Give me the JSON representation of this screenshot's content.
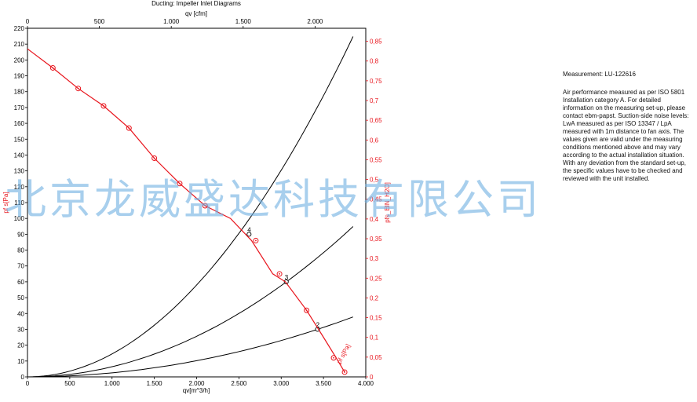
{
  "header": {
    "small_title": "Ducting: Impeller Inlet Diagrams"
  },
  "chart_data": {
    "type": "line",
    "top_axis": {
      "label": "qv [cfm]",
      "ticks": [
        0,
        500,
        1000,
        1500,
        2000
      ],
      "tick_labels": [
        "0",
        "500",
        "1.000",
        "1.500",
        "2.000"
      ]
    },
    "bottom_axis": {
      "label": "qv[m^3/h]",
      "ticks": [
        0,
        500,
        1000,
        1500,
        2000,
        2500,
        3000,
        3500,
        4000
      ],
      "tick_labels": [
        "0",
        "500",
        "1.000",
        "1.500",
        "2.000",
        "2.500",
        "3.000",
        "3.500",
        "4.000"
      ],
      "lim": [
        0,
        4000
      ]
    },
    "left_axis": {
      "label": "pf s[Pa]",
      "ticks": [
        0,
        10,
        20,
        30,
        40,
        50,
        60,
        70,
        80,
        90,
        100,
        110,
        120,
        130,
        140,
        150,
        160,
        170,
        180,
        190,
        200,
        210,
        220
      ],
      "lim": [
        0,
        220
      ]
    },
    "right_axis": {
      "label": "pfs_EIN_H2O]",
      "ticks": [
        0,
        0.05,
        0.1,
        0.15,
        0.2,
        0.25,
        0.3,
        0.35,
        0.4,
        0.45,
        0.5,
        0.55,
        0.6,
        0.65,
        0.7,
        0.75,
        0.8,
        0.85
      ],
      "tick_labels": [
        "0",
        "0,05",
        "0,1",
        "0,15",
        "0,2",
        "0,25",
        "0,3",
        "0,35",
        "0,4",
        "0,45",
        "0,5",
        "0,55",
        "0,6",
        "0,65",
        "0,7",
        "0,75",
        "0,8",
        "0,85"
      ]
    },
    "fan_curve": {
      "name": "pf s[Pa]",
      "x": [
        0,
        300,
        600,
        900,
        1200,
        1500,
        1800,
        2100,
        2400,
        2650,
        2900,
        3050,
        3300,
        3500,
        3650,
        3750
      ],
      "y": [
        207,
        195,
        182,
        171,
        157,
        138,
        122,
        108,
        100,
        86,
        65,
        60,
        42,
        25,
        12,
        3
      ],
      "markers_x": [
        300,
        600,
        900,
        1200,
        1500,
        1800,
        2100,
        2700,
        2980,
        3300,
        3620,
        3750
      ],
      "markers_y": [
        195,
        182,
        171,
        157,
        138,
        122,
        108,
        86,
        65,
        42,
        12,
        3
      ]
    },
    "system_curves": [
      {
        "k": 1.449e-05,
        "x_max": 3850,
        "label": "4",
        "op_x": 2620,
        "op_y": 90
      },
      {
        "k": 6.4e-06,
        "x_max": 3850,
        "label": "3",
        "op_x": 3060,
        "op_y": 60
      },
      {
        "k": 2.55e-06,
        "x_max": 3850,
        "label": "2",
        "op_x": 3430,
        "op_y": 30
      }
    ],
    "colors": {
      "fan": "#e8141c",
      "system": "#000000",
      "frame": "#000000",
      "right_axis": "#e8141c"
    },
    "grid": false
  },
  "notes": {
    "measurement": "Measurement: LU-122616",
    "body": "Air performance measured as per ISO 5801 Installation category A. For detailed information on the measuring set-up, please contact ebm-papst. Suction-side noise levels: LwA measured as per ISO 13347 / LpA measured with 1m distance to fan axis. The values given are valid under the measuring conditions mentioned above and may vary according to the actual installation situation. With any deviation from the standard set-up, the specific values have to be checked and reviewed with the unit installed."
  },
  "watermark": "北京龙威盛达科技有限公司"
}
